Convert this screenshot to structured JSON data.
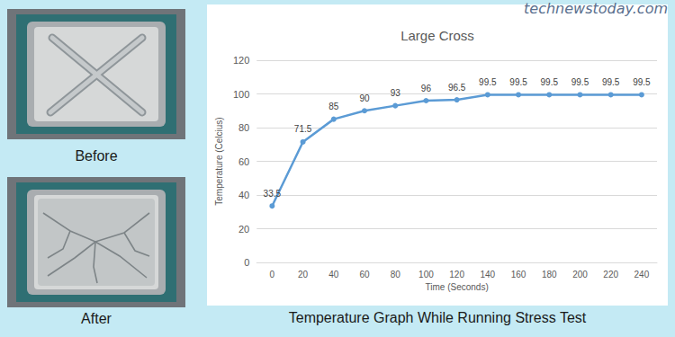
{
  "site": "technewstoday.com",
  "images": [
    {
      "label": "Before"
    },
    {
      "label": "After"
    }
  ],
  "caption": "Temperature Graph While Running Stress Test",
  "chart_data": {
    "type": "line",
    "title": "Large Cross",
    "x_label": "Time (Seconds)",
    "y_label": "Temperature (Celcius)",
    "categories": [
      "0",
      "20",
      "40",
      "60",
      "80",
      "100",
      "120",
      "140",
      "160",
      "180",
      "200",
      "220",
      "240"
    ],
    "values": [
      33.5,
      71.5,
      85,
      90,
      93,
      96,
      96.5,
      99.5,
      99.5,
      99.5,
      99.5,
      99.5,
      99.5
    ],
    "color": "#5b9bd5",
    "marker": "circle",
    "ylim": [
      0,
      120
    ],
    "yticks": [
      0,
      20,
      40,
      60,
      80,
      100,
      120
    ],
    "grid": true,
    "data_labels": true
  }
}
